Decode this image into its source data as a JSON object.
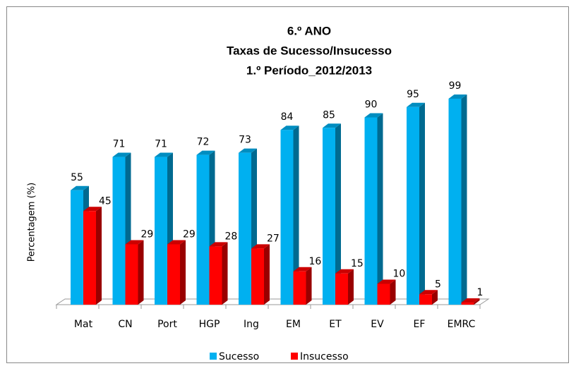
{
  "chart_data": {
    "type": "bar3d",
    "title": [
      "6.º ANO",
      "Taxas de Sucesso/Insucesso",
      "1.º Período_2012/2013"
    ],
    "y_label": "Percentagem (%)",
    "categories": [
      "Mat",
      "CN",
      "Port",
      "HGP",
      "Ing",
      "EM",
      "ET",
      "EV",
      "EF",
      "EMRC"
    ],
    "series": [
      {
        "name": "Sucesso",
        "color": "#00b0f0",
        "values": [
          55,
          71,
          71,
          72,
          73,
          84,
          85,
          90,
          95,
          99
        ]
      },
      {
        "name": "Insucesso",
        "color": "#ff0000",
        "values": [
          45,
          29,
          29,
          28,
          27,
          16,
          15,
          10,
          5,
          1
        ]
      }
    ],
    "ylim": [
      0,
      100
    ],
    "legend": "bottom"
  }
}
